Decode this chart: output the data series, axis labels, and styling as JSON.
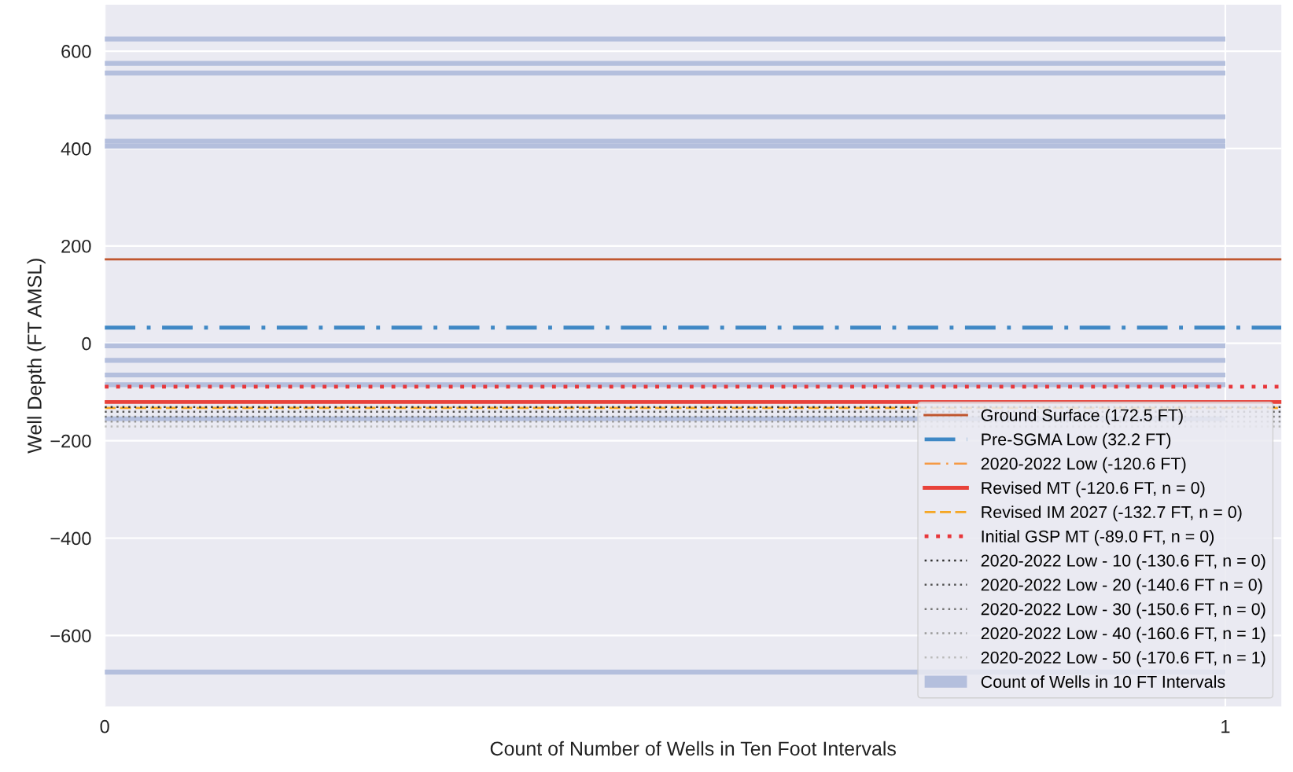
{
  "chart_data": {
    "type": "histogram",
    "orientation": "horizontal",
    "xlabel": "Count of Number of Wells in Ten Foot Intervals",
    "ylabel": "Well Depth (FT AMSL)",
    "bins": [
      -680,
      -670,
      -160,
      -150,
      -90,
      -80,
      -70,
      -60,
      -40,
      -30,
      -10,
      0,
      400,
      410,
      420,
      460,
      470,
      550,
      560,
      570,
      580,
      620,
      630
    ],
    "series": [
      {
        "name": "Count of Wells in 10 FT Intervals",
        "color": "#b4bfdd",
        "values": [
          1,
          0,
          1,
          0,
          1,
          0,
          1,
          0,
          1,
          0,
          1,
          0,
          1,
          1,
          0,
          1,
          0,
          1,
          0,
          1,
          0,
          1
        ]
      }
    ],
    "xlim": [
      0,
      1.05
    ],
    "xticks": [
      0,
      1
    ],
    "ylim": [
      -745.5,
      695.5
    ],
    "yticks": [
      -600,
      -400,
      -200,
      0,
      200,
      400,
      600
    ],
    "ref_lines": [
      {
        "axis": "y",
        "value": 172.5,
        "label": "Ground Surface (172.5 FT)",
        "color": "#c0562f",
        "line_style": "solid"
      },
      {
        "axis": "y",
        "value": 32.2,
        "label": "Pre-SGMA Low (32.2 FT)",
        "color": "#3f88c5",
        "line_style": "dashdot"
      },
      {
        "axis": "y",
        "value": -120.6,
        "label": "2020-2022 Low (-120.6 FT)",
        "color": "#f59a45",
        "line_style": "dashdot"
      },
      {
        "axis": "y",
        "value": -120.6,
        "label": "Revised MT (-120.6 FT, n = 0)",
        "color": "#e8423a",
        "line_style": "solid"
      },
      {
        "axis": "y",
        "value": -132.7,
        "label": "Revised IM 2027 (-132.7 FT, n = 0)",
        "color": "#f5a623",
        "line_style": "dashed"
      },
      {
        "axis": "y",
        "value": -89.0,
        "label": "Initial GSP MT (-89.0 FT, n = 0)",
        "color": "#e8363a",
        "line_style": "dotted"
      },
      {
        "axis": "y",
        "value": -130.6,
        "label": "2020-2022 Low - 10 (-130.6 FT, n = 0)",
        "color": "#333333",
        "line_style": "dotted"
      },
      {
        "axis": "y",
        "value": -140.6,
        "label": "2020-2022 Low - 20 (-140.6 FT n = 0)",
        "color": "#555555",
        "line_style": "dotted"
      },
      {
        "axis": "y",
        "value": -150.6,
        "label": "2020-2022 Low - 30 (-150.6 FT, n = 0)",
        "color": "#777777",
        "line_style": "dotted"
      },
      {
        "axis": "y",
        "value": -160.6,
        "label": "2020-2022 Low - 40 (-160.6 FT, n = 1)",
        "color": "#999999",
        "line_style": "dotted"
      },
      {
        "axis": "y",
        "value": -170.6,
        "label": "2020-2022 Low - 50 (-170.6 FT, n = 1)",
        "color": "#bbbbbb",
        "line_style": "dotted"
      }
    ],
    "grid": true,
    "legend": "lower right"
  }
}
